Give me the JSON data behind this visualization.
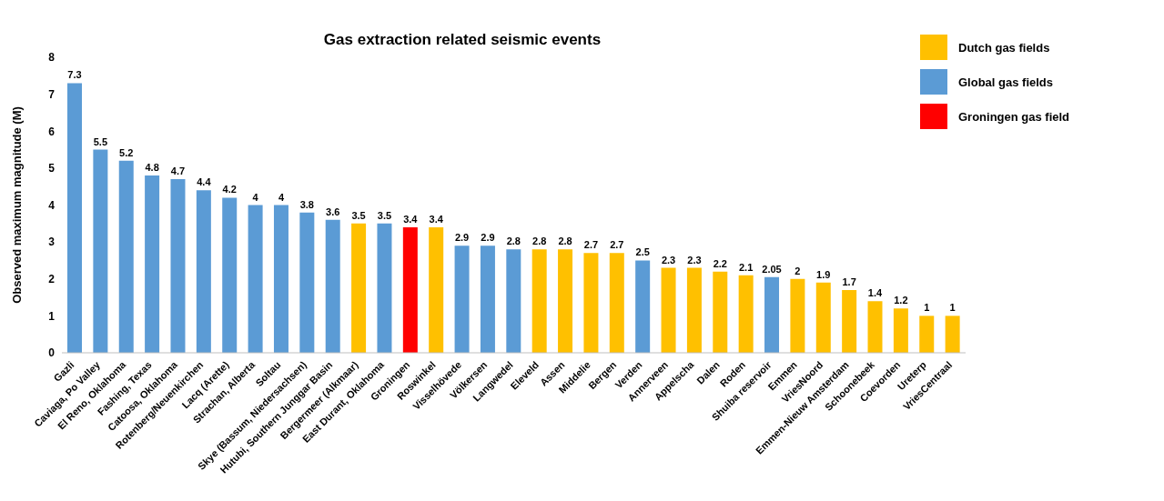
{
  "chart_data": {
    "type": "bar",
    "title": "Gas extraction related seismic events",
    "ylabel": "Observed maximum magnitude (M)",
    "categories": [
      "Gazli",
      "Caviaga, Po Valley",
      "El Reno, Oklahoma",
      "Fashing, Texas",
      "Catoosa, Oklahoma",
      "Rotenberg/Neuenkirchen",
      "Lacq (Arette)",
      "Strachan, Alberta",
      "Soltau",
      "Skye (Bassum, Niedersachsen)",
      "Hutubi, Southern Junggar Basin",
      "Bergermeer (Alkmaar)",
      "East Durant, Oklahoma",
      "Groningen",
      "Roswinkel",
      "Visselhövede",
      "Völkersen",
      "Langwedel",
      "Eleveld",
      "Assen",
      "Middelie",
      "Bergen",
      "Verden",
      "Annerveen",
      "Appelscha",
      "Dalen",
      "Roden",
      "Shuiba reservoir",
      "Emmen",
      "VriesNoord",
      "Emmen-Nieuw Amsterdam",
      "Schoonebeek",
      "Coevorden",
      "Ureterp",
      "VriesCentraal"
    ],
    "series": [
      {
        "name": "Groningen gas field",
        "color": "#ff0000",
        "values": [
          null,
          null,
          null,
          null,
          null,
          null,
          null,
          null,
          null,
          null,
          null,
          null,
          null,
          3.4,
          null,
          null,
          null,
          null,
          null,
          null,
          null,
          null,
          null,
          null,
          null,
          null,
          null,
          null,
          null,
          null,
          null,
          null,
          null,
          null,
          null
        ]
      },
      {
        "name": "Dutch gas fields",
        "color": "#ffc000",
        "values": [
          null,
          null,
          null,
          null,
          null,
          null,
          null,
          null,
          null,
          null,
          null,
          3.5,
          null,
          null,
          3.4,
          null,
          null,
          null,
          2.8,
          2.8,
          2.7,
          2.7,
          null,
          2.3,
          2.3,
          2.2,
          2.1,
          null,
          2,
          1.9,
          1.7,
          1.4,
          1.2,
          1,
          1
        ]
      },
      {
        "name": "Global gas fields",
        "color": "#5b9bd5",
        "values": [
          7.3,
          5.5,
          5.2,
          4.8,
          4.7,
          4.4,
          4.2,
          4,
          4,
          3.8,
          3.6,
          null,
          3.5,
          null,
          null,
          2.9,
          2.9,
          2.8,
          null,
          null,
          null,
          null,
          2.5,
          null,
          null,
          null,
          null,
          2.05,
          null,
          null,
          null,
          null,
          null,
          null,
          null
        ]
      }
    ],
    "ylim": [
      0,
      8
    ],
    "yticks": [
      0,
      1,
      2,
      3,
      4,
      5,
      6,
      7,
      8
    ],
    "grid": false,
    "legend": "top right",
    "data_labels": true
  }
}
